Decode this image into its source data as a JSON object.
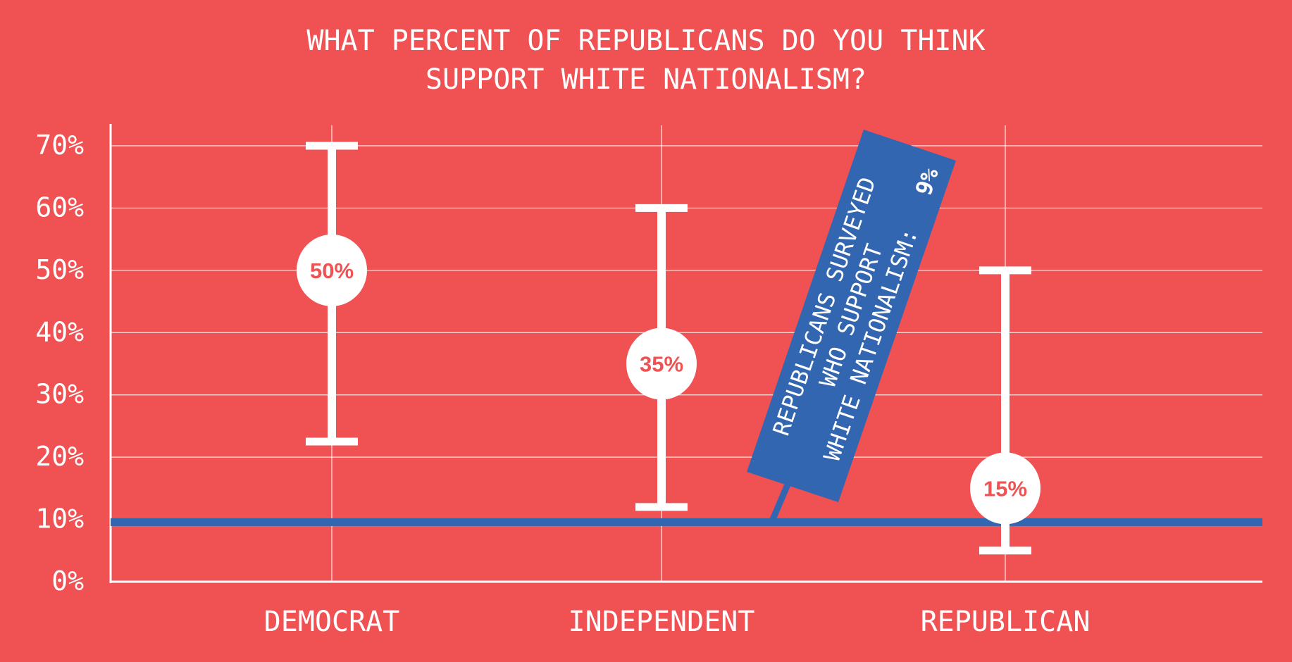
{
  "chart_data": {
    "type": "errorbar",
    "title": [
      "WHAT PERCENT OF REPUBLICANS DO YOU THINK",
      "SUPPORT WHITE NATIONALISM?"
    ],
    "xlabel": "",
    "ylabel": "",
    "categories": [
      "DEMOCRAT",
      "INDEPENDENT",
      "REPUBLICAN"
    ],
    "points": [
      {
        "category": "DEMOCRAT",
        "value": 50,
        "low": 22.5,
        "high": 70,
        "label": "50%"
      },
      {
        "category": "INDEPENDENT",
        "value": 35,
        "low": 12,
        "high": 60,
        "label": "35%"
      },
      {
        "category": "REPUBLICAN",
        "value": 15,
        "low": 5,
        "high": 50,
        "label": "15%"
      }
    ],
    "ylim": [
      0,
      70
    ],
    "yticks": [
      0,
      10,
      20,
      30,
      40,
      50,
      60,
      70
    ],
    "ytick_labels": [
      "0%",
      "10%",
      "20%",
      "30%",
      "40%",
      "50%",
      "60%",
      "70%"
    ],
    "grid": true,
    "reference_line": {
      "value": 9,
      "annotation": [
        "REPUBLICANS SURVEYED",
        "WHO SUPPORT",
        "WHITE NATIONALISM:"
      ],
      "annotation_value": "9%"
    },
    "colors": {
      "background": "#f05254",
      "marks": "#ffffff",
      "reference": "#3366b0",
      "label_text": "#f05254"
    }
  }
}
